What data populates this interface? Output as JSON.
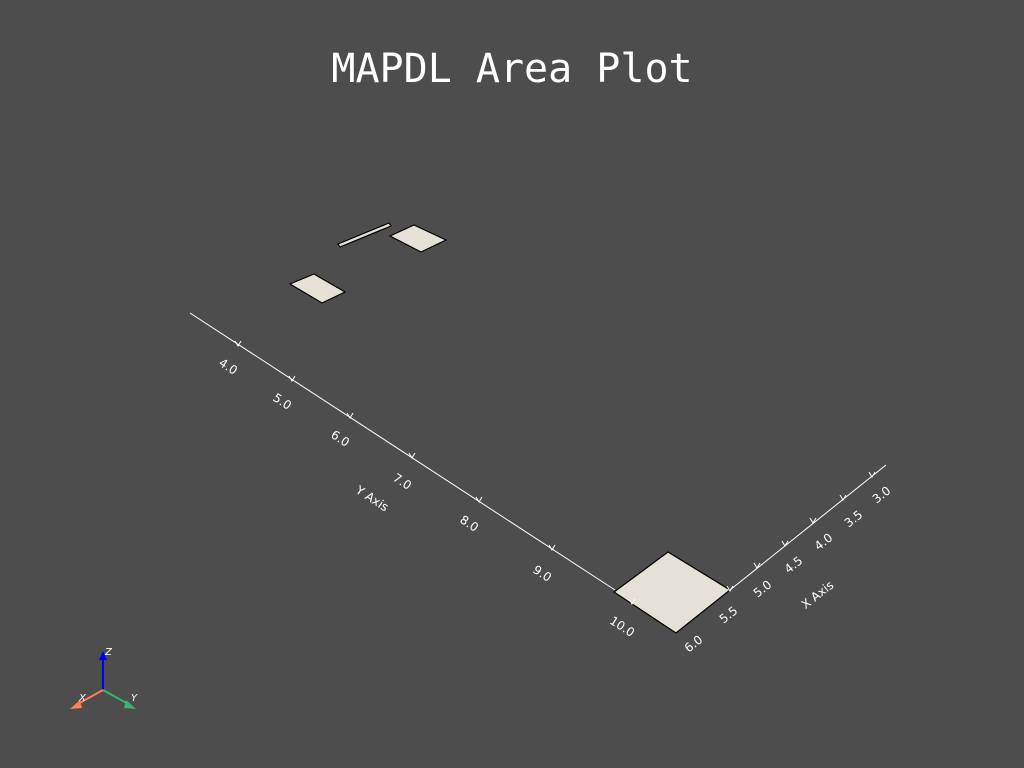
{
  "title": "MAPDL Area Plot",
  "colors": {
    "background": "#4d4d4d",
    "area_fill": "#e6e1d6",
    "area_edge": "#000000",
    "axis": "#ffffff",
    "triad_x": "#ff7f50",
    "triad_y": "#3cb371",
    "triad_z": "#0000ff"
  },
  "chart_data": {
    "type": "3d-area-plot",
    "title": "MAPDL Area Plot",
    "x_axis": {
      "label": "X Axis",
      "ticks": [
        "3.0",
        "3.5",
        "4.0",
        "4.5",
        "5.0",
        "5.5",
        "6.0"
      ]
    },
    "y_axis": {
      "label": "Y Axis",
      "ticks": [
        "4.0",
        "5.0",
        "6.0",
        "7.0",
        "8.0",
        "9.0",
        "10.0"
      ]
    },
    "grid": false,
    "triad": {
      "x_label": "X",
      "y_label": "Y",
      "z_label": "Z"
    }
  }
}
